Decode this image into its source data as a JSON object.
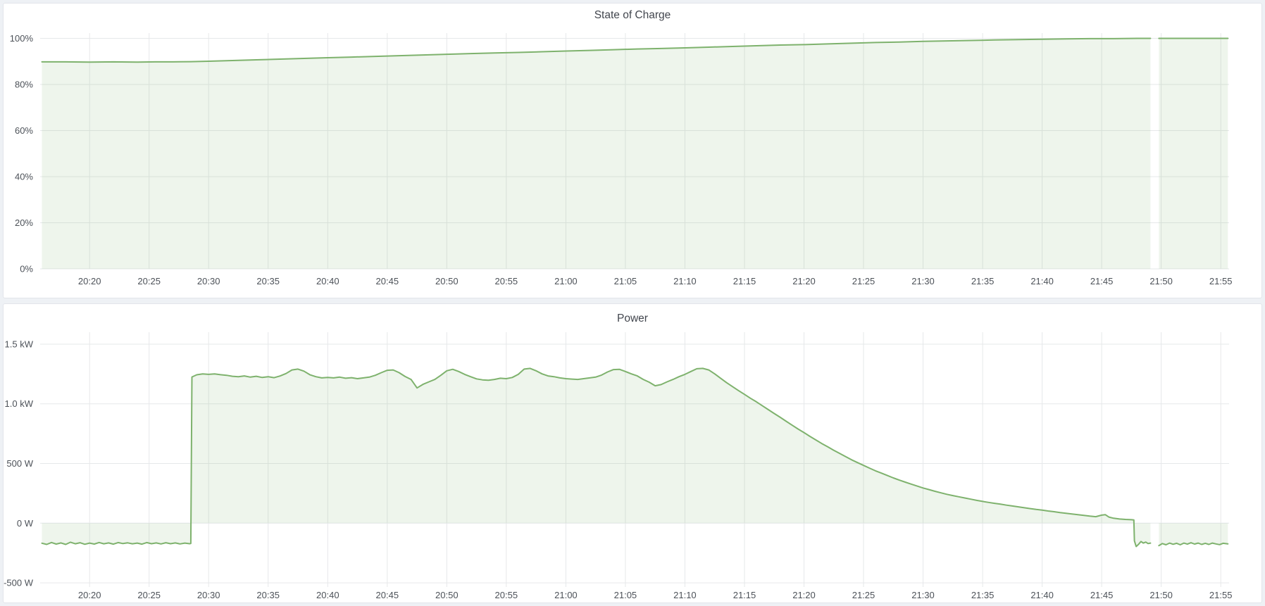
{
  "page": {
    "background": "#eef1f5",
    "panel_background": "#ffffff",
    "panel_border": "#e2e5ea",
    "accent_green": "#7eb26d"
  },
  "chart_data": [
    {
      "type": "area",
      "title": "State of Charge",
      "legend": "none",
      "grid": true,
      "line_color": "#7eb26d",
      "fill_color": "rgba(126,178,109,0.13)",
      "baseline": 0,
      "xlim": [
        15.85,
        115.7
      ],
      "ylim": [
        0,
        100
      ],
      "x_unit": "time (HH:MM)",
      "y_unit": "percent",
      "x_ticks": [
        {
          "v": 20,
          "label": "20:20"
        },
        {
          "v": 25,
          "label": "20:25"
        },
        {
          "v": 30,
          "label": "20:30"
        },
        {
          "v": 35,
          "label": "20:35"
        },
        {
          "v": 40,
          "label": "20:40"
        },
        {
          "v": 45,
          "label": "20:45"
        },
        {
          "v": 50,
          "label": "20:50"
        },
        {
          "v": 55,
          "label": "20:55"
        },
        {
          "v": 60,
          "label": "21:00"
        },
        {
          "v": 65,
          "label": "21:05"
        },
        {
          "v": 70,
          "label": "21:10"
        },
        {
          "v": 75,
          "label": "21:15"
        },
        {
          "v": 80,
          "label": "21:20"
        },
        {
          "v": 85,
          "label": "21:25"
        },
        {
          "v": 90,
          "label": "21:30"
        },
        {
          "v": 95,
          "label": "21:35"
        },
        {
          "v": 100,
          "label": "21:40"
        },
        {
          "v": 105,
          "label": "21:45"
        },
        {
          "v": 110,
          "label": "21:50"
        },
        {
          "v": 115,
          "label": "21:55"
        }
      ],
      "y_ticks": [
        {
          "v": 0,
          "label": "0%"
        },
        {
          "v": 20,
          "label": "20%"
        },
        {
          "v": 40,
          "label": "40%"
        },
        {
          "v": 60,
          "label": "60%"
        },
        {
          "v": 80,
          "label": "80%"
        },
        {
          "v": 100,
          "label": "100%"
        }
      ],
      "points": [
        [
          16,
          89.8
        ],
        [
          18,
          89.8
        ],
        [
          20,
          89.7
        ],
        [
          22,
          89.8
        ],
        [
          24,
          89.7
        ],
        [
          25.5,
          89.8
        ],
        [
          27,
          89.8
        ],
        [
          28.5,
          89.9
        ],
        [
          30,
          90.1
        ],
        [
          32,
          90.4
        ],
        [
          34,
          90.7
        ],
        [
          36,
          91.0
        ],
        [
          38,
          91.3
        ],
        [
          40,
          91.6
        ],
        [
          42,
          91.9
        ],
        [
          44,
          92.2
        ],
        [
          46,
          92.5
        ],
        [
          48,
          92.8
        ],
        [
          50,
          93.1
        ],
        [
          52,
          93.4
        ],
        [
          54,
          93.7
        ],
        [
          56,
          93.9
        ],
        [
          58,
          94.2
        ],
        [
          60,
          94.5
        ],
        [
          62,
          94.8
        ],
        [
          64,
          95.1
        ],
        [
          66,
          95.4
        ],
        [
          68,
          95.6
        ],
        [
          70,
          95.9
        ],
        [
          72,
          96.2
        ],
        [
          74,
          96.5
        ],
        [
          76,
          96.8
        ],
        [
          78,
          97.1
        ],
        [
          80,
          97.3
        ],
        [
          82,
          97.6
        ],
        [
          84,
          97.9
        ],
        [
          86,
          98.2
        ],
        [
          88,
          98.4
        ],
        [
          90,
          98.7
        ],
        [
          92,
          98.9
        ],
        [
          94,
          99.1
        ],
        [
          96,
          99.3
        ],
        [
          98,
          99.5
        ],
        [
          100,
          99.6
        ],
        [
          102,
          99.8
        ],
        [
          104,
          99.9
        ],
        [
          106,
          99.9
        ],
        [
          108,
          100
        ],
        [
          109.1,
          100
        ],
        null,
        [
          109.8,
          100
        ],
        [
          112,
          100
        ],
        [
          115.6,
          100
        ]
      ]
    },
    {
      "type": "area",
      "title": "Power",
      "legend": "none",
      "grid": true,
      "line_color": "#7eb26d",
      "fill_color": "rgba(126,178,109,0.13)",
      "baseline": 0,
      "xlim": [
        15.85,
        115.7
      ],
      "ylim": [
        -500,
        1500
      ],
      "x_unit": "time (HH:MM)",
      "y_unit": "watts",
      "x_ticks": [
        {
          "v": 20,
          "label": "20:20"
        },
        {
          "v": 25,
          "label": "20:25"
        },
        {
          "v": 30,
          "label": "20:30"
        },
        {
          "v": 35,
          "label": "20:35"
        },
        {
          "v": 40,
          "label": "20:40"
        },
        {
          "v": 45,
          "label": "20:45"
        },
        {
          "v": 50,
          "label": "20:50"
        },
        {
          "v": 55,
          "label": "20:55"
        },
        {
          "v": 60,
          "label": "21:00"
        },
        {
          "v": 65,
          "label": "21:05"
        },
        {
          "v": 70,
          "label": "21:10"
        },
        {
          "v": 75,
          "label": "21:15"
        },
        {
          "v": 80,
          "label": "21:20"
        },
        {
          "v": 85,
          "label": "21:25"
        },
        {
          "v": 90,
          "label": "21:30"
        },
        {
          "v": 95,
          "label": "21:35"
        },
        {
          "v": 100,
          "label": "21:40"
        },
        {
          "v": 105,
          "label": "21:45"
        },
        {
          "v": 110,
          "label": "21:50"
        },
        {
          "v": 115,
          "label": "21:55"
        }
      ],
      "y_ticks": [
        {
          "v": -500,
          "label": "-500 W"
        },
        {
          "v": 0,
          "label": "0 W"
        },
        {
          "v": 500,
          "label": "500 W"
        },
        {
          "v": 1000,
          "label": "1.0 kW"
        },
        {
          "v": 1500,
          "label": "1.5 kW"
        }
      ],
      "points": [
        [
          16,
          -168
        ],
        [
          16.4,
          -178
        ],
        [
          16.8,
          -162
        ],
        [
          17.2,
          -175
        ],
        [
          17.6,
          -166
        ],
        [
          18,
          -178
        ],
        [
          18.4,
          -160
        ],
        [
          18.8,
          -173
        ],
        [
          19.2,
          -164
        ],
        [
          19.6,
          -177
        ],
        [
          20,
          -167
        ],
        [
          20.4,
          -175
        ],
        [
          20.8,
          -162
        ],
        [
          21.2,
          -173
        ],
        [
          21.6,
          -166
        ],
        [
          22,
          -176
        ],
        [
          22.4,
          -163
        ],
        [
          22.8,
          -171
        ],
        [
          23.2,
          -165
        ],
        [
          23.6,
          -173
        ],
        [
          24,
          -167
        ],
        [
          24.4,
          -176
        ],
        [
          24.8,
          -163
        ],
        [
          25.2,
          -172
        ],
        [
          25.6,
          -166
        ],
        [
          26,
          -174
        ],
        [
          26.4,
          -164
        ],
        [
          26.8,
          -172
        ],
        [
          27.2,
          -166
        ],
        [
          27.6,
          -174
        ],
        [
          28,
          -167
        ],
        [
          28.4,
          -172
        ],
        [
          28.5,
          -170
        ],
        [
          28.6,
          1225
        ],
        [
          29,
          1243
        ],
        [
          29.5,
          1250
        ],
        [
          30,
          1247
        ],
        [
          30.5,
          1251
        ],
        [
          31,
          1244
        ],
        [
          31.5,
          1239
        ],
        [
          32,
          1231
        ],
        [
          32.5,
          1227
        ],
        [
          33,
          1234
        ],
        [
          33.5,
          1224
        ],
        [
          34,
          1231
        ],
        [
          34.5,
          1221
        ],
        [
          35,
          1227
        ],
        [
          35.5,
          1219
        ],
        [
          36,
          1233
        ],
        [
          36.5,
          1254
        ],
        [
          37,
          1284
        ],
        [
          37.5,
          1291
        ],
        [
          38,
          1274
        ],
        [
          38.5,
          1244
        ],
        [
          39,
          1227
        ],
        [
          39.5,
          1217
        ],
        [
          40,
          1221
        ],
        [
          40.5,
          1217
        ],
        [
          41,
          1224
        ],
        [
          41.5,
          1214
        ],
        [
          42,
          1219
        ],
        [
          42.5,
          1211
        ],
        [
          43,
          1217
        ],
        [
          43.5,
          1224
        ],
        [
          44,
          1239
        ],
        [
          44.5,
          1261
        ],
        [
          45,
          1281
        ],
        [
          45.5,
          1284
        ],
        [
          46,
          1261
        ],
        [
          46.5,
          1229
        ],
        [
          47,
          1204
        ],
        [
          47.5,
          1133
        ],
        [
          48,
          1163
        ],
        [
          48.5,
          1184
        ],
        [
          49,
          1204
        ],
        [
          49.5,
          1239
        ],
        [
          50,
          1277
        ],
        [
          50.5,
          1289
        ],
        [
          51,
          1271
        ],
        [
          51.5,
          1247
        ],
        [
          52,
          1227
        ],
        [
          52.5,
          1209
        ],
        [
          53,
          1201
        ],
        [
          53.5,
          1197
        ],
        [
          54,
          1204
        ],
        [
          54.5,
          1214
        ],
        [
          55,
          1211
        ],
        [
          55.5,
          1221
        ],
        [
          56,
          1247
        ],
        [
          56.5,
          1291
        ],
        [
          57,
          1297
        ],
        [
          57.5,
          1277
        ],
        [
          58,
          1251
        ],
        [
          58.5,
          1234
        ],
        [
          59,
          1227
        ],
        [
          59.5,
          1217
        ],
        [
          60,
          1211
        ],
        [
          60.5,
          1207
        ],
        [
          61,
          1204
        ],
        [
          61.5,
          1211
        ],
        [
          62,
          1217
        ],
        [
          62.5,
          1224
        ],
        [
          63,
          1241
        ],
        [
          63.5,
          1267
        ],
        [
          64,
          1287
        ],
        [
          64.5,
          1289
        ],
        [
          65,
          1271
        ],
        [
          65.5,
          1251
        ],
        [
          66,
          1234
        ],
        [
          66.5,
          1204
        ],
        [
          67,
          1181
        ],
        [
          67.5,
          1151
        ],
        [
          68,
          1161
        ],
        [
          68.5,
          1184
        ],
        [
          69,
          1204
        ],
        [
          69.5,
          1227
        ],
        [
          70,
          1247
        ],
        [
          70.5,
          1271
        ],
        [
          71,
          1294
        ],
        [
          71.5,
          1297
        ],
        [
          72,
          1284
        ],
        [
          72.5,
          1251
        ],
        [
          73,
          1214
        ],
        [
          73.5,
          1177
        ],
        [
          74,
          1144
        ],
        [
          74.5,
          1111
        ],
        [
          75,
          1079
        ],
        [
          75.5,
          1047
        ],
        [
          76,
          1017
        ],
        [
          76.5,
          984
        ],
        [
          77,
          951
        ],
        [
          77.5,
          919
        ],
        [
          78,
          887
        ],
        [
          78.5,
          854
        ],
        [
          79,
          821
        ],
        [
          79.5,
          789
        ],
        [
          80,
          759
        ],
        [
          80.5,
          727
        ],
        [
          81,
          697
        ],
        [
          81.5,
          667
        ],
        [
          82,
          639
        ],
        [
          82.5,
          611
        ],
        [
          83,
          584
        ],
        [
          83.5,
          557
        ],
        [
          84,
          531
        ],
        [
          84.5,
          507
        ],
        [
          85,
          484
        ],
        [
          85.5,
          461
        ],
        [
          86,
          439
        ],
        [
          86.5,
          419
        ],
        [
          87,
          399
        ],
        [
          87.5,
          379
        ],
        [
          88,
          361
        ],
        [
          88.5,
          344
        ],
        [
          89,
          327
        ],
        [
          89.5,
          311
        ],
        [
          90,
          295
        ],
        [
          90.5,
          281
        ],
        [
          91,
          267
        ],
        [
          91.5,
          254
        ],
        [
          92,
          242
        ],
        [
          92.5,
          231
        ],
        [
          93,
          221
        ],
        [
          93.5,
          211
        ],
        [
          94,
          201
        ],
        [
          94.5,
          191
        ],
        [
          95,
          182
        ],
        [
          95.5,
          174
        ],
        [
          96,
          166
        ],
        [
          96.5,
          159
        ],
        [
          97,
          151
        ],
        [
          97.5,
          144
        ],
        [
          98,
          137
        ],
        [
          98.5,
          129
        ],
        [
          99,
          122
        ],
        [
          99.5,
          115
        ],
        [
          100,
          109
        ],
        [
          100.5,
          102
        ],
        [
          101,
          96
        ],
        [
          101.5,
          89
        ],
        [
          102,
          83
        ],
        [
          102.5,
          77
        ],
        [
          103,
          71
        ],
        [
          103.5,
          65
        ],
        [
          104,
          59
        ],
        [
          104.5,
          54
        ],
        [
          105,
          67
        ],
        [
          105.3,
          71
        ],
        [
          105.6,
          51
        ],
        [
          106,
          41
        ],
        [
          106.5,
          35
        ],
        [
          107,
          31
        ],
        [
          107.5,
          29
        ],
        [
          107.7,
          27
        ],
        [
          107.75,
          -148
        ],
        [
          107.9,
          -196
        ],
        [
          108.1,
          -177
        ],
        [
          108.3,
          -154
        ],
        [
          108.5,
          -167
        ],
        [
          108.7,
          -159
        ],
        [
          108.9,
          -171
        ],
        [
          109.1,
          -167
        ],
        null,
        [
          109.8,
          -188
        ],
        [
          110.1,
          -171
        ],
        [
          110.4,
          -181
        ],
        [
          110.7,
          -167
        ],
        [
          111,
          -177
        ],
        [
          111.3,
          -169
        ],
        [
          111.6,
          -181
        ],
        [
          111.9,
          -167
        ],
        [
          112.2,
          -176
        ],
        [
          112.5,
          -164
        ],
        [
          112.8,
          -175
        ],
        [
          113.1,
          -167
        ],
        [
          113.4,
          -178
        ],
        [
          113.7,
          -169
        ],
        [
          114,
          -178
        ],
        [
          114.3,
          -167
        ],
        [
          114.6,
          -174
        ],
        [
          114.9,
          -180
        ],
        [
          115.2,
          -169
        ],
        [
          115.6,
          -174
        ]
      ]
    }
  ]
}
